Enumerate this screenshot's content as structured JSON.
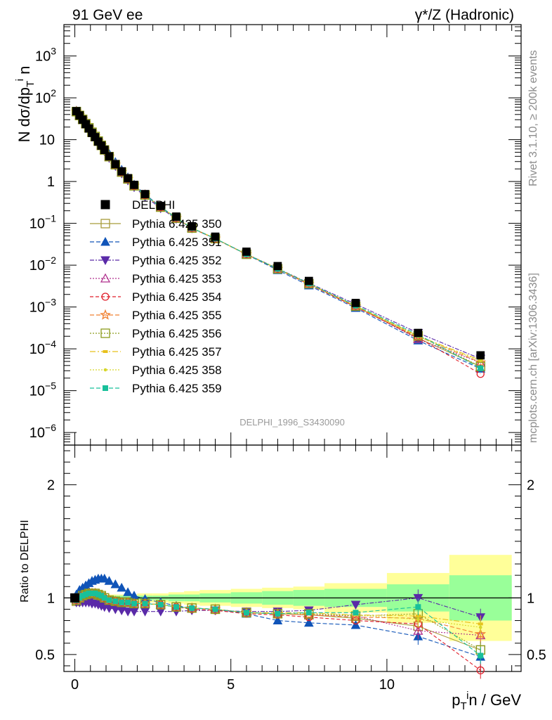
{
  "header": {
    "left": "91 GeV ee",
    "right": "γ*/Z (Hadronic)"
  },
  "side_text": {
    "rivet": "Rivet 3.1.10, ≥ 200k events",
    "mcplots": "mcplots.cern.ch [arXiv:1306.3436]"
  },
  "analysis_id": "DELPHI_1996_S3430090",
  "chart_data": {
    "type": "line",
    "x_label": "p_T^i n / GeV",
    "xlim": [
      -0.35,
      14.3
    ],
    "x_ticks": [
      "0",
      "5",
      "10"
    ],
    "main": {
      "ylabel": "N dσ/dp_T^i n",
      "ylim_log10": [
        -6.3,
        3.75
      ],
      "y_ticks": [
        {
          "exp": 3,
          "label": "10",
          "sup": "3"
        },
        {
          "exp": 2,
          "label": "10",
          "sup": "2"
        },
        {
          "exp": 1,
          "label": "10",
          "sup": ""
        },
        {
          "exp": 0,
          "label": "1",
          "sup": ""
        },
        {
          "exp": -1,
          "label": "10",
          "sup": "−1"
        },
        {
          "exp": -2,
          "label": "10",
          "sup": "−2"
        },
        {
          "exp": -3,
          "label": "10",
          "sup": "−3"
        },
        {
          "exp": -4,
          "label": "10",
          "sup": "−4"
        },
        {
          "exp": -5,
          "label": "10",
          "sup": "−5"
        },
        {
          "exp": -6,
          "label": "10",
          "sup": "−6"
        }
      ],
      "x": [
        0.05,
        0.15,
        0.25,
        0.35,
        0.45,
        0.55,
        0.65,
        0.75,
        0.85,
        0.95,
        1.1,
        1.3,
        1.5,
        1.7,
        1.9,
        2.25,
        2.75,
        3.25,
        3.75,
        4.5,
        5.5,
        6.5,
        7.5,
        9.0,
        11.0,
        13.0
      ],
      "data": [
        48,
        38,
        30,
        23.5,
        18.5,
        14.5,
        11.5,
        9.0,
        7.2,
        5.7,
        4.0,
        2.6,
        1.75,
        1.2,
        0.83,
        0.5,
        0.26,
        0.145,
        0.085,
        0.048,
        0.021,
        0.0095,
        0.0042,
        0.00125,
        0.00024,
        7e-05
      ]
    },
    "ratio": {
      "ylabel": "Ratio to DELPHI",
      "ylim": [
        0.35,
        2.35
      ],
      "y_ticks": [
        "0.5",
        "1",
        "2"
      ],
      "band_edges": [
        0.0,
        0.1,
        0.2,
        0.3,
        0.4,
        0.5,
        0.6,
        0.7,
        0.8,
        0.9,
        1.0,
        1.2,
        1.4,
        1.6,
        1.8,
        2.0,
        2.5,
        3.0,
        3.5,
        4.0,
        5.0,
        6.0,
        7.0,
        8.0,
        10.0,
        12.0,
        14.0
      ],
      "inner_band": [
        0.02,
        0.02,
        0.02,
        0.02,
        0.02,
        0.02,
        0.02,
        0.02,
        0.02,
        0.02,
        0.02,
        0.02,
        0.02,
        0.02,
        0.02,
        0.02,
        0.02,
        0.03,
        0.03,
        0.04,
        0.05,
        0.06,
        0.07,
        0.08,
        0.12,
        0.2
      ],
      "outer_band": [
        0.03,
        0.03,
        0.03,
        0.03,
        0.03,
        0.03,
        0.03,
        0.03,
        0.03,
        0.03,
        0.03,
        0.03,
        0.03,
        0.03,
        0.03,
        0.04,
        0.04,
        0.05,
        0.06,
        0.07,
        0.08,
        0.09,
        0.1,
        0.13,
        0.22,
        0.38
      ],
      "data_marker_x": 0.0,
      "data_marker_y": 1.0
    },
    "band_colors": {
      "inner": "#99ff99",
      "outer": "#ffff99"
    },
    "data_series": {
      "name": "DELPHI",
      "color": "#000000",
      "marker": "square-filled"
    },
    "series": [
      {
        "name": "Pythia 6.425 350",
        "color": "#a89c3a",
        "marker": "square-open",
        "dash": "",
        "ratio": [
          0.97,
          0.99,
          1.01,
          1.02,
          1.03,
          1.03,
          1.03,
          1.02,
          1.01,
          1.0,
          0.98,
          0.97,
          0.96,
          0.96,
          0.95,
          0.95,
          0.94,
          0.92,
          0.91,
          0.9,
          0.87,
          0.86,
          0.85,
          0.82,
          0.75,
          0.54
        ]
      },
      {
        "name": "Pythia 6.425 351",
        "color": "#1054b8",
        "marker": "triangle-up-filled",
        "dash": "6 3",
        "ratio": [
          1.03,
          1.07,
          1.09,
          1.11,
          1.13,
          1.15,
          1.16,
          1.17,
          1.17,
          1.17,
          1.15,
          1.12,
          1.09,
          1.05,
          1.02,
          0.99,
          0.96,
          0.93,
          0.91,
          0.9,
          0.86,
          0.8,
          0.78,
          0.76,
          0.66,
          0.48
        ]
      },
      {
        "name": "Pythia 6.425 352",
        "color": "#5a2aa8",
        "marker": "triangle-down-filled",
        "dash": "6 2 2 2",
        "ratio": [
          0.96,
          0.96,
          0.96,
          0.96,
          0.96,
          0.95,
          0.95,
          0.94,
          0.93,
          0.92,
          0.91,
          0.9,
          0.89,
          0.88,
          0.88,
          0.88,
          0.88,
          0.88,
          0.89,
          0.89,
          0.88,
          0.88,
          0.89,
          0.94,
          1.0,
          0.83
        ]
      },
      {
        "name": "Pythia 6.425 353",
        "color": "#b0308e",
        "marker": "triangle-up-open",
        "dash": "2 2",
        "ratio": [
          0.98,
          1.0,
          1.02,
          1.03,
          1.04,
          1.04,
          1.04,
          1.03,
          1.02,
          1.0,
          0.98,
          0.97,
          0.96,
          0.96,
          0.95,
          0.95,
          0.94,
          0.92,
          0.91,
          0.9,
          0.87,
          0.86,
          0.85,
          0.84,
          0.71,
          0.67
        ]
      },
      {
        "name": "Pythia 6.425 354",
        "color": "#e01e2a",
        "marker": "circle-open",
        "dash": "5 3",
        "ratio": [
          0.98,
          1.0,
          1.02,
          1.03,
          1.03,
          1.03,
          1.03,
          1.02,
          1.01,
          1.0,
          0.98,
          0.97,
          0.96,
          0.96,
          0.95,
          0.95,
          0.94,
          0.92,
          0.9,
          0.89,
          0.86,
          0.85,
          0.83,
          0.8,
          0.77,
          0.36
        ]
      },
      {
        "name": "Pythia 6.425 355",
        "color": "#f08030",
        "marker": "star-open",
        "dash": "6 3",
        "ratio": [
          0.98,
          1.0,
          1.02,
          1.03,
          1.04,
          1.04,
          1.04,
          1.03,
          1.02,
          1.0,
          0.98,
          0.97,
          0.96,
          0.96,
          0.95,
          0.95,
          0.94,
          0.92,
          0.91,
          0.9,
          0.87,
          0.86,
          0.85,
          0.83,
          0.82,
          0.68
        ]
      },
      {
        "name": "Pythia 6.425 356",
        "color": "#8c9c1c",
        "marker": "square-open",
        "dash": "2 2",
        "ratio": [
          0.98,
          1.0,
          1.02,
          1.03,
          1.04,
          1.04,
          1.04,
          1.03,
          1.02,
          1.0,
          0.98,
          0.97,
          0.96,
          0.96,
          0.95,
          0.95,
          0.94,
          0.92,
          0.91,
          0.9,
          0.87,
          0.86,
          0.86,
          0.84,
          0.86,
          0.54
        ]
      },
      {
        "name": "Pythia 6.425 357",
        "color": "#e8c01c",
        "marker": "dash-dot",
        "dash": "8 3 2 3",
        "ratio": [
          0.98,
          1.0,
          1.02,
          1.03,
          1.04,
          1.04,
          1.04,
          1.03,
          1.02,
          1.0,
          0.98,
          0.97,
          0.96,
          0.96,
          0.95,
          0.95,
          0.94,
          0.92,
          0.91,
          0.9,
          0.87,
          0.87,
          0.87,
          0.85,
          0.84,
          0.77
        ]
      },
      {
        "name": "Pythia 6.425 358",
        "color": "#d6d62a",
        "marker": "dot",
        "dash": "2 2",
        "ratio": [
          0.98,
          1.0,
          1.02,
          1.03,
          1.04,
          1.04,
          1.04,
          1.03,
          1.02,
          1.0,
          0.98,
          0.97,
          0.96,
          0.96,
          0.95,
          0.95,
          0.94,
          0.92,
          0.91,
          0.9,
          0.87,
          0.86,
          0.86,
          0.85,
          0.81,
          0.74
        ]
      },
      {
        "name": "Pythia 6.425 359",
        "color": "#18c09a",
        "marker": "square-small-filled",
        "dash": "6 3",
        "ratio": [
          0.98,
          1.0,
          1.02,
          1.03,
          1.04,
          1.04,
          1.04,
          1.03,
          1.02,
          1.0,
          0.98,
          0.97,
          0.96,
          0.96,
          0.95,
          0.95,
          0.94,
          0.92,
          0.91,
          0.9,
          0.87,
          0.86,
          0.87,
          0.87,
          0.92,
          0.49
        ]
      }
    ]
  }
}
